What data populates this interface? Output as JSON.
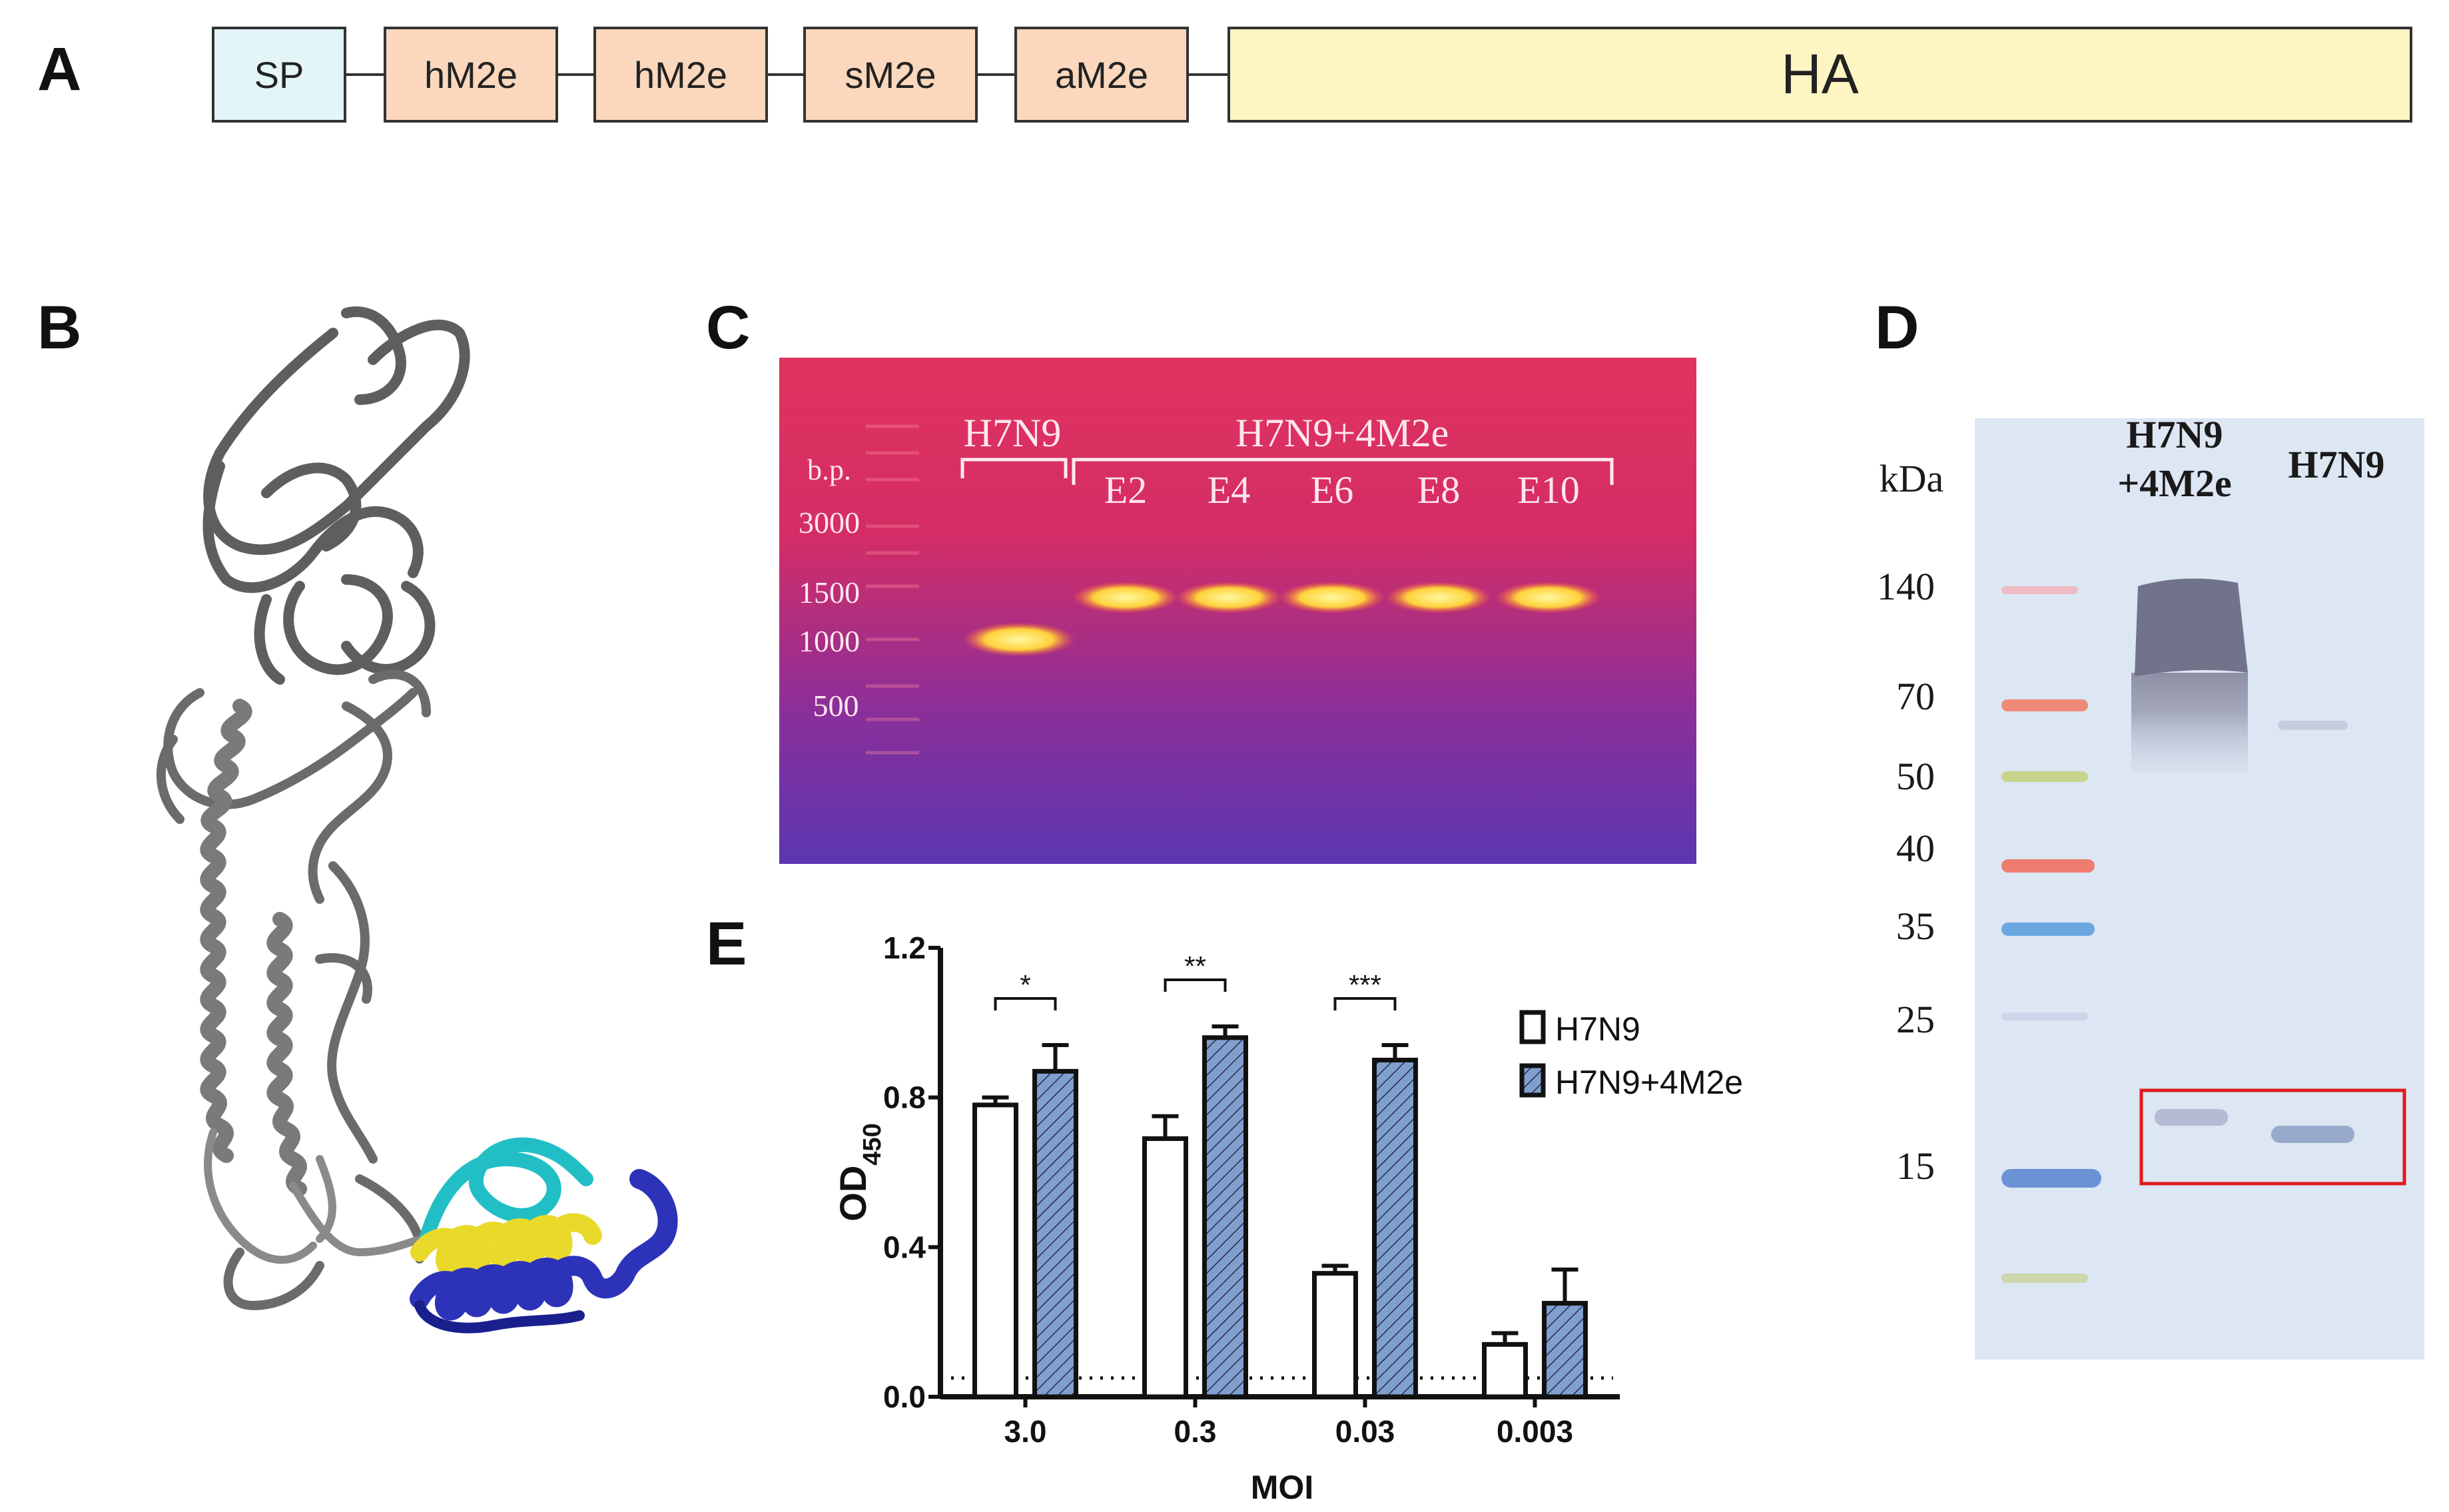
{
  "panels": {
    "a": "A",
    "b": "B",
    "c": "C",
    "d": "D",
    "e": "E"
  },
  "construct": {
    "segments": [
      {
        "label": "SP",
        "color": "#e4f5f8"
      },
      {
        "label": "hM2e",
        "color": "#fbd8bd"
      },
      {
        "label": "hM2e",
        "color": "#fbd8bd"
      },
      {
        "label": "sM2e",
        "color": "#fbd8bd"
      },
      {
        "label": "aM2e",
        "color": "#fbd8bd"
      },
      {
        "label": "HA",
        "color": "#fdf6c3"
      }
    ]
  },
  "gel": {
    "bp_label": "b.p.",
    "markers": [
      "3000",
      "1500",
      "1000",
      "500"
    ],
    "group1": "H7N9",
    "group2": "H7N9+4M2e",
    "lanes": [
      "E2",
      "E4",
      "E6",
      "E8",
      "E10"
    ]
  },
  "western": {
    "kda_label": "kDa",
    "markers": [
      "140",
      "70",
      "50",
      "40",
      "35",
      "25",
      "15"
    ],
    "lane1_line1": "H7N9",
    "lane1_line2": "+4M2e",
    "lane2": "H7N9"
  },
  "chart_data": {
    "type": "bar",
    "title": "",
    "xlabel": "MOI",
    "ylabel_main": "OD",
    "ylabel_sub": "450",
    "categories": [
      "3.0",
      "0.3",
      "0.03",
      "0.003"
    ],
    "ylim": [
      0,
      1.2
    ],
    "yticks": [
      "0.0",
      "0.4",
      "0.8",
      "1.2"
    ],
    "baseline": 0.05,
    "series": [
      {
        "name": "H7N9",
        "values": [
          0.78,
          0.69,
          0.33,
          0.14
        ],
        "errors": [
          0.02,
          0.06,
          0.02,
          0.03
        ],
        "fill": "#ffffff"
      },
      {
        "name": "H7N9+4M2e",
        "values": [
          0.87,
          0.96,
          0.9,
          0.25
        ],
        "errors": [
          0.07,
          0.03,
          0.04,
          0.09
        ],
        "fill": "#7f9fce"
      }
    ],
    "significance": [
      "*",
      "**",
      "***",
      ""
    ],
    "legend": [
      "H7N9",
      "H7N9+4M2e"
    ],
    "legend_position": "top-right"
  }
}
